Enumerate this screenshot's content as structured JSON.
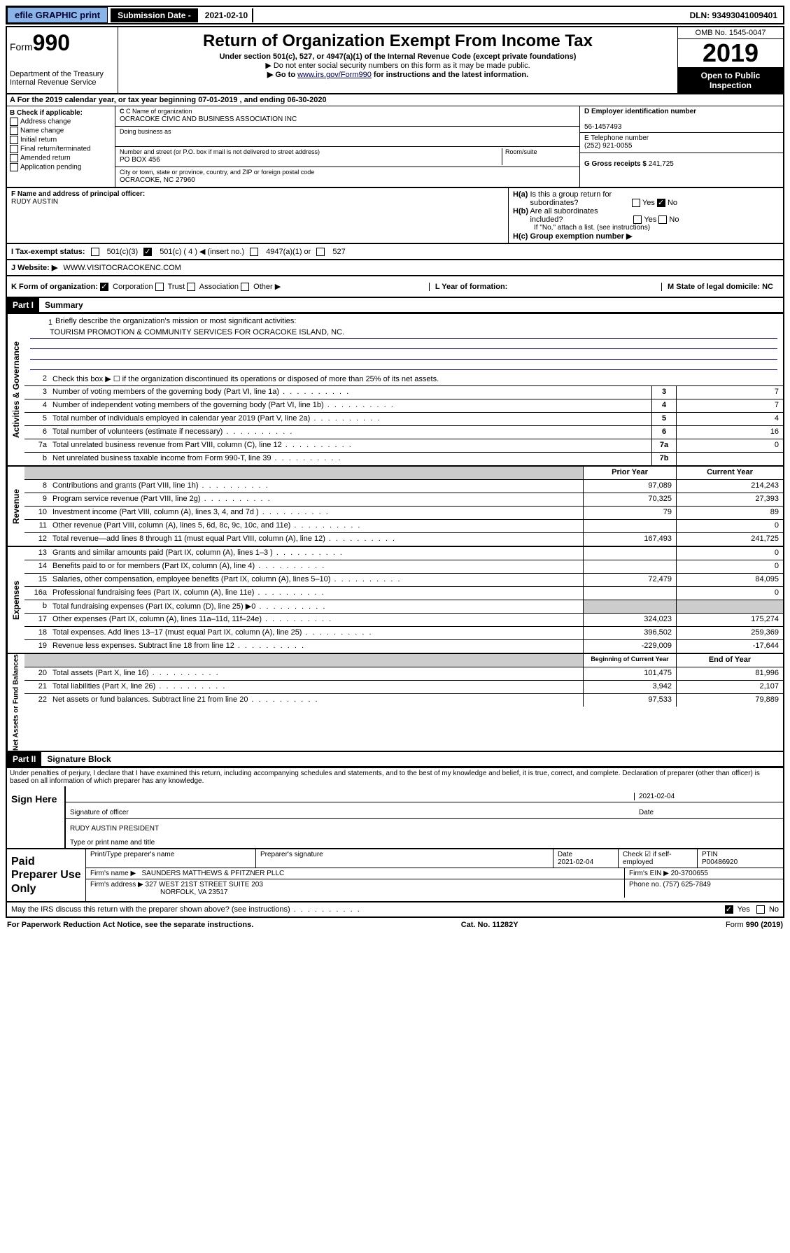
{
  "topbar": {
    "efile": "efile GRAPHIC print",
    "sub_label": "Submission Date - ",
    "sub_date": "2021-02-10",
    "dln": "DLN: 93493041009401"
  },
  "header": {
    "form_prefix": "Form",
    "form_num": "990",
    "dept1": "Department of the Treasury",
    "dept2": "Internal Revenue Service",
    "title": "Return of Organization Exempt From Income Tax",
    "sub": "Under section 501(c), 527, or 4947(a)(1) of the Internal Revenue Code (except private foundations)",
    "arrow1": "▶ Do not enter social security numbers on this form as it may be made public.",
    "arrow2_pre": "▶ Go to ",
    "arrow2_link": "www.irs.gov/Form990",
    "arrow2_post": " for instructions and the latest information.",
    "omb": "OMB No. 1545-0047",
    "year": "2019",
    "open": "Open to Public Inspection"
  },
  "rowA": "A For the 2019 calendar year, or tax year beginning 07-01-2019    , and ending 06-30-2020",
  "colB": {
    "title": "B Check if applicable:",
    "opts": [
      "Address change",
      "Name change",
      "Initial return",
      "Final return/terminated",
      "Amended return",
      "Application pending"
    ]
  },
  "colC": {
    "name_label": "C Name of organization",
    "name": "OCRACOKE CIVIC AND BUSINESS ASSOCIATION INC",
    "dba_label": "Doing business as",
    "addr_label": "Number and street (or P.O. box if mail is not delivered to street address)",
    "room_label": "Room/suite",
    "addr": "PO BOX 456",
    "city_label": "City or town, state or province, country, and ZIP or foreign postal code",
    "city": "OCRACOKE, NC  27960"
  },
  "colD": {
    "label": "D Employer identification number",
    "val": "56-1457493"
  },
  "colE": {
    "label": "E Telephone number",
    "val": "(252) 921-0055"
  },
  "colG": {
    "label": "G Gross receipts $",
    "val": "241,725"
  },
  "colF": {
    "label": "F Name and address of principal officer:",
    "val": "RUDY AUSTIN"
  },
  "colH": {
    "a": "H(a) Is this a group return for subordinates?",
    "b": "H(b) Are all subordinates included?",
    "note": "If \"No,\" attach a list. (see instructions)",
    "c": "H(c) Group exemption number ▶"
  },
  "taxRow": {
    "label": "I   Tax-exempt status:",
    "opt3": "501(c)(3)",
    "opt4": "501(c) ( 4 ) ◀ (insert no.)",
    "opt5": "4947(a)(1) or",
    "opt6": "527"
  },
  "webRow": {
    "label": "J   Website: ▶",
    "val": "WWW.VISITOCRACOKENC.COM"
  },
  "kRow": {
    "k": "K Form of organization:",
    "corp": "Corporation",
    "trust": "Trust",
    "assoc": "Association",
    "other": "Other ▶",
    "l": "L Year of formation:",
    "m": "M State of legal domicile: NC"
  },
  "part1": {
    "header": "Part I",
    "title": "Summary",
    "q1": "Briefly describe the organization's mission or most significant activities:",
    "mission": "TOURISM PROMOTION & COMMUNITY SERVICES FOR OCRACOKE ISLAND, NC.",
    "q2": "Check this box ▶ ☐ if the organization discontinued its operations or disposed of more than 25% of its net assets.",
    "lines_gov": [
      {
        "n": "3",
        "d": "Number of voting members of the governing body (Part VI, line 1a)",
        "box": "3",
        "v": "7"
      },
      {
        "n": "4",
        "d": "Number of independent voting members of the governing body (Part VI, line 1b)",
        "box": "4",
        "v": "7"
      },
      {
        "n": "5",
        "d": "Total number of individuals employed in calendar year 2019 (Part V, line 2a)",
        "box": "5",
        "v": "4"
      },
      {
        "n": "6",
        "d": "Total number of volunteers (estimate if necessary)",
        "box": "6",
        "v": "16"
      },
      {
        "n": "7a",
        "d": "Total unrelated business revenue from Part VIII, column (C), line 12",
        "box": "7a",
        "v": "0"
      },
      {
        "n": "b",
        "d": "Net unrelated business taxable income from Form 990-T, line 39",
        "box": "7b",
        "v": ""
      }
    ],
    "hdr_prior": "Prior Year",
    "hdr_curr": "Current Year",
    "lines_rev": [
      {
        "n": "8",
        "d": "Contributions and grants (Part VIII, line 1h)",
        "p": "97,089",
        "c": "214,243"
      },
      {
        "n": "9",
        "d": "Program service revenue (Part VIII, line 2g)",
        "p": "70,325",
        "c": "27,393"
      },
      {
        "n": "10",
        "d": "Investment income (Part VIII, column (A), lines 3, 4, and 7d )",
        "p": "79",
        "c": "89"
      },
      {
        "n": "11",
        "d": "Other revenue (Part VIII, column (A), lines 5, 6d, 8c, 9c, 10c, and 11e)",
        "p": "",
        "c": "0"
      },
      {
        "n": "12",
        "d": "Total revenue—add lines 8 through 11 (must equal Part VIII, column (A), line 12)",
        "p": "167,493",
        "c": "241,725"
      }
    ],
    "lines_exp": [
      {
        "n": "13",
        "d": "Grants and similar amounts paid (Part IX, column (A), lines 1–3 )",
        "p": "",
        "c": "0"
      },
      {
        "n": "14",
        "d": "Benefits paid to or for members (Part IX, column (A), line 4)",
        "p": "",
        "c": "0"
      },
      {
        "n": "15",
        "d": "Salaries, other compensation, employee benefits (Part IX, column (A), lines 5–10)",
        "p": "72,479",
        "c": "84,095"
      },
      {
        "n": "16a",
        "d": "Professional fundraising fees (Part IX, column (A), line 11e)",
        "p": "",
        "c": "0"
      },
      {
        "n": "b",
        "d": "Total fundraising expenses (Part IX, column (D), line 25) ▶0",
        "p": "grey",
        "c": "grey"
      },
      {
        "n": "17",
        "d": "Other expenses (Part IX, column (A), lines 11a–11d, 11f–24e)",
        "p": "324,023",
        "c": "175,274"
      },
      {
        "n": "18",
        "d": "Total expenses. Add lines 13–17 (must equal Part IX, column (A), line 25)",
        "p": "396,502",
        "c": "259,369"
      },
      {
        "n": "19",
        "d": "Revenue less expenses. Subtract line 18 from line 12",
        "p": "-229,009",
        "c": "-17,644"
      }
    ],
    "hdr_beg": "Beginning of Current Year",
    "hdr_end": "End of Year",
    "lines_net": [
      {
        "n": "20",
        "d": "Total assets (Part X, line 16)",
        "p": "101,475",
        "c": "81,996"
      },
      {
        "n": "21",
        "d": "Total liabilities (Part X, line 26)",
        "p": "3,942",
        "c": "2,107"
      },
      {
        "n": "22",
        "d": "Net assets or fund balances. Subtract line 21 from line 20",
        "p": "97,533",
        "c": "79,889"
      }
    ]
  },
  "side": {
    "gov": "Activities & Governance",
    "rev": "Revenue",
    "exp": "Expenses",
    "net": "Net Assets or Fund Balances"
  },
  "part2": {
    "header": "Part II",
    "title": "Signature Block",
    "penalty": "Under penalties of perjury, I declare that I have examined this return, including accompanying schedules and statements, and to the best of my knowledge and belief, it is true, correct, and complete. Declaration of preparer (other than officer) is based on all information of which preparer has any knowledge."
  },
  "sign": {
    "here": "Sign Here",
    "sig_date": "2021-02-04",
    "sig_label": "Signature of officer",
    "date_label": "Date",
    "name": "RUDY AUSTIN  PRESIDENT",
    "name_label": "Type or print name and title"
  },
  "paid": {
    "title": "Paid Preparer Use Only",
    "h1": "Print/Type preparer's name",
    "h2": "Preparer's signature",
    "h3": "Date",
    "h3v": "2021-02-04",
    "h4": "Check ☑ if self-employed",
    "h5": "PTIN",
    "h5v": "P00486920",
    "firm_l": "Firm's name    ▶",
    "firm_v": "SAUNDERS MATTHEWS & PFITZNER PLLC",
    "ein_l": "Firm's EIN ▶",
    "ein_v": "20-3700655",
    "addr_l": "Firm's address ▶",
    "addr_v1": "327 WEST 21ST STREET SUITE 203",
    "addr_v2": "NORFOLK, VA  23517",
    "phone_l": "Phone no.",
    "phone_v": "(757) 625-7849"
  },
  "footer": {
    "q": "May the IRS discuss this return with the preparer shown above? (see instructions)",
    "yes": "Yes",
    "no": "No",
    "note": "For Paperwork Reduction Act Notice, see the separate instructions.",
    "cat": "Cat. No. 11282Y",
    "form": "Form 990 (2019)"
  }
}
